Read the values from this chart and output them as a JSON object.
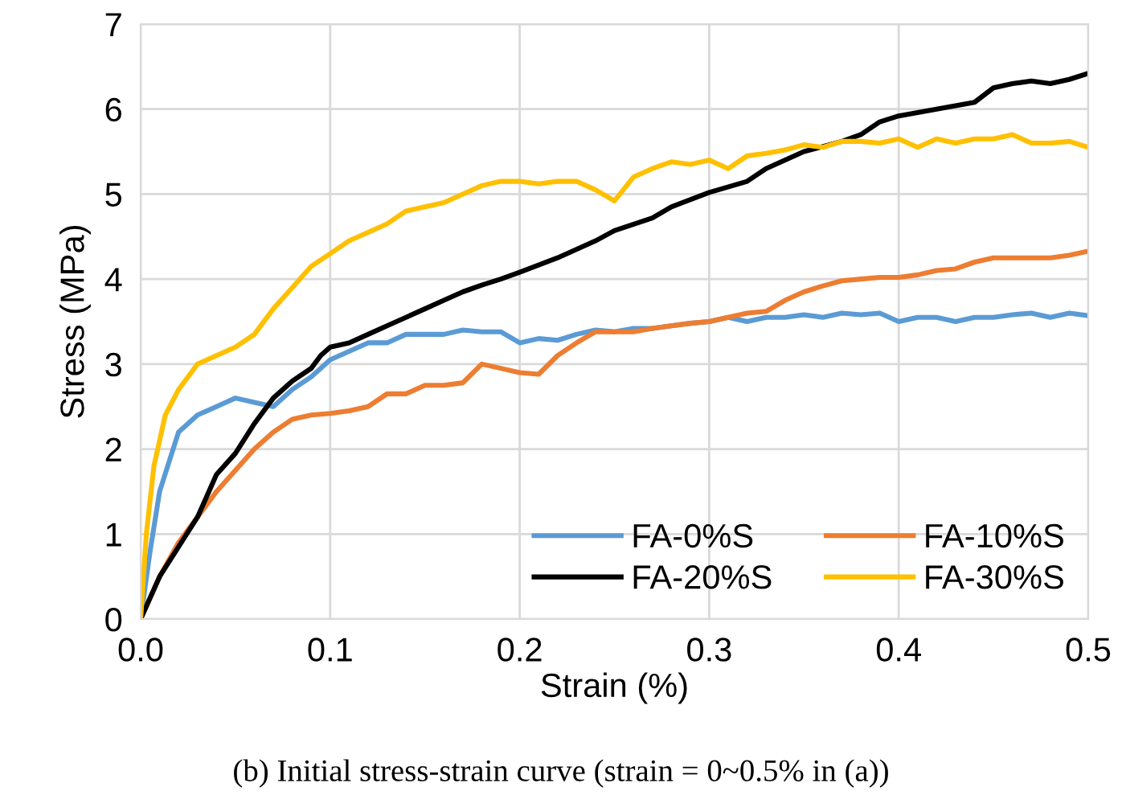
{
  "chart_data": {
    "type": "line",
    "xlabel": "Strain (%)",
    "ylabel": "Stress (MPa)",
    "annotations": [
      "(b) Initial stress-strain curve (strain = 0~0.5% in (a))"
    ],
    "xlim": [
      0,
      0.5
    ],
    "ylim": [
      0,
      7
    ],
    "xticks": [
      {
        "value": 0,
        "label": "0.0"
      },
      {
        "value": 0.1,
        "label": "0.1"
      },
      {
        "value": 0.2,
        "label": "0.2"
      },
      {
        "value": 0.3,
        "label": "0.3"
      },
      {
        "value": 0.4,
        "label": "0.4"
      },
      {
        "value": 0.5,
        "label": "0.5"
      }
    ],
    "yticks": [
      0,
      1,
      2,
      3,
      4,
      5,
      6,
      7
    ],
    "grid": true,
    "legend": "bottom right",
    "marker": "none",
    "line_style": "solid",
    "series": [
      {
        "name": "FA-0%S",
        "color": "#5b9bd5",
        "x": [
          0,
          0.005,
          0.01,
          0.02,
          0.03,
          0.04,
          0.05,
          0.06,
          0.07,
          0.08,
          0.09,
          0.1,
          0.11,
          0.12,
          0.13,
          0.14,
          0.15,
          0.16,
          0.17,
          0.18,
          0.19,
          0.2,
          0.21,
          0.22,
          0.23,
          0.24,
          0.25,
          0.26,
          0.27,
          0.28,
          0.29,
          0.3,
          0.31,
          0.32,
          0.33,
          0.34,
          0.35,
          0.36,
          0.37,
          0.38,
          0.39,
          0.4,
          0.41,
          0.42,
          0.43,
          0.44,
          0.45,
          0.46,
          0.47,
          0.48,
          0.49,
          0.5
        ],
        "values": [
          0,
          0.8,
          1.5,
          2.2,
          2.4,
          2.5,
          2.6,
          2.55,
          2.5,
          2.7,
          2.85,
          3.05,
          3.15,
          3.25,
          3.25,
          3.35,
          3.35,
          3.35,
          3.4,
          3.38,
          3.38,
          3.25,
          3.3,
          3.28,
          3.35,
          3.4,
          3.38,
          3.42,
          3.42,
          3.45,
          3.48,
          3.5,
          3.55,
          3.5,
          3.55,
          3.55,
          3.58,
          3.55,
          3.6,
          3.58,
          3.6,
          3.5,
          3.55,
          3.55,
          3.5,
          3.55,
          3.55,
          3.58,
          3.6,
          3.55,
          3.6,
          3.57
        ]
      },
      {
        "name": "FA-10%S",
        "color": "#ed7d31",
        "x": [
          0,
          0.01,
          0.02,
          0.03,
          0.04,
          0.05,
          0.06,
          0.07,
          0.08,
          0.09,
          0.1,
          0.11,
          0.12,
          0.13,
          0.14,
          0.15,
          0.16,
          0.17,
          0.18,
          0.19,
          0.2,
          0.21,
          0.22,
          0.23,
          0.24,
          0.25,
          0.26,
          0.27,
          0.28,
          0.29,
          0.3,
          0.31,
          0.32,
          0.33,
          0.34,
          0.35,
          0.36,
          0.37,
          0.38,
          0.39,
          0.4,
          0.41,
          0.42,
          0.43,
          0.44,
          0.45,
          0.46,
          0.47,
          0.48,
          0.49,
          0.5
        ],
        "values": [
          0,
          0.5,
          0.9,
          1.2,
          1.5,
          1.75,
          2.0,
          2.2,
          2.35,
          2.4,
          2.42,
          2.45,
          2.5,
          2.65,
          2.65,
          2.75,
          2.75,
          2.78,
          3.0,
          2.95,
          2.9,
          2.88,
          3.1,
          3.25,
          3.38,
          3.38,
          3.38,
          3.42,
          3.45,
          3.48,
          3.5,
          3.55,
          3.6,
          3.62,
          3.75,
          3.85,
          3.92,
          3.98,
          4.0,
          4.02,
          4.02,
          4.05,
          4.1,
          4.12,
          4.2,
          4.25,
          4.25,
          4.25,
          4.25,
          4.28,
          4.33
        ]
      },
      {
        "name": "FA-20%S",
        "color": "#000000",
        "x": [
          0,
          0.01,
          0.02,
          0.03,
          0.04,
          0.05,
          0.06,
          0.07,
          0.08,
          0.09,
          0.095,
          0.1,
          0.11,
          0.12,
          0.13,
          0.14,
          0.15,
          0.16,
          0.17,
          0.18,
          0.19,
          0.2,
          0.22,
          0.24,
          0.25,
          0.27,
          0.28,
          0.3,
          0.32,
          0.33,
          0.35,
          0.37,
          0.38,
          0.39,
          0.4,
          0.42,
          0.44,
          0.45,
          0.46,
          0.47,
          0.48,
          0.49,
          0.5
        ],
        "values": [
          0,
          0.5,
          0.85,
          1.2,
          1.7,
          1.95,
          2.3,
          2.6,
          2.8,
          2.95,
          3.1,
          3.2,
          3.25,
          3.35,
          3.45,
          3.55,
          3.65,
          3.75,
          3.85,
          3.93,
          4.0,
          4.08,
          4.25,
          4.45,
          4.57,
          4.72,
          4.85,
          5.02,
          5.15,
          5.3,
          5.5,
          5.62,
          5.7,
          5.85,
          5.92,
          6.0,
          6.08,
          6.25,
          6.3,
          6.33,
          6.3,
          6.35,
          6.42
        ]
      },
      {
        "name": "FA-30%S",
        "color": "#ffc000",
        "x": [
          0,
          0.003,
          0.007,
          0.013,
          0.02,
          0.03,
          0.04,
          0.05,
          0.06,
          0.07,
          0.08,
          0.09,
          0.1,
          0.11,
          0.12,
          0.13,
          0.14,
          0.15,
          0.16,
          0.17,
          0.18,
          0.19,
          0.2,
          0.21,
          0.22,
          0.23,
          0.24,
          0.25,
          0.26,
          0.27,
          0.28,
          0.29,
          0.3,
          0.31,
          0.32,
          0.33,
          0.34,
          0.35,
          0.36,
          0.37,
          0.38,
          0.39,
          0.4,
          0.41,
          0.42,
          0.43,
          0.44,
          0.45,
          0.46,
          0.47,
          0.48,
          0.49,
          0.5
        ],
        "values": [
          0,
          1.0,
          1.8,
          2.4,
          2.7,
          3.0,
          3.1,
          3.2,
          3.35,
          3.65,
          3.9,
          4.15,
          4.3,
          4.45,
          4.55,
          4.65,
          4.8,
          4.85,
          4.9,
          5.0,
          5.1,
          5.15,
          5.15,
          5.12,
          5.15,
          5.15,
          5.05,
          4.92,
          5.2,
          5.3,
          5.38,
          5.35,
          5.4,
          5.3,
          5.45,
          5.48,
          5.52,
          5.58,
          5.55,
          5.62,
          5.62,
          5.6,
          5.65,
          5.55,
          5.65,
          5.6,
          5.65,
          5.65,
          5.7,
          5.6,
          5.6,
          5.62,
          5.55
        ]
      }
    ]
  }
}
